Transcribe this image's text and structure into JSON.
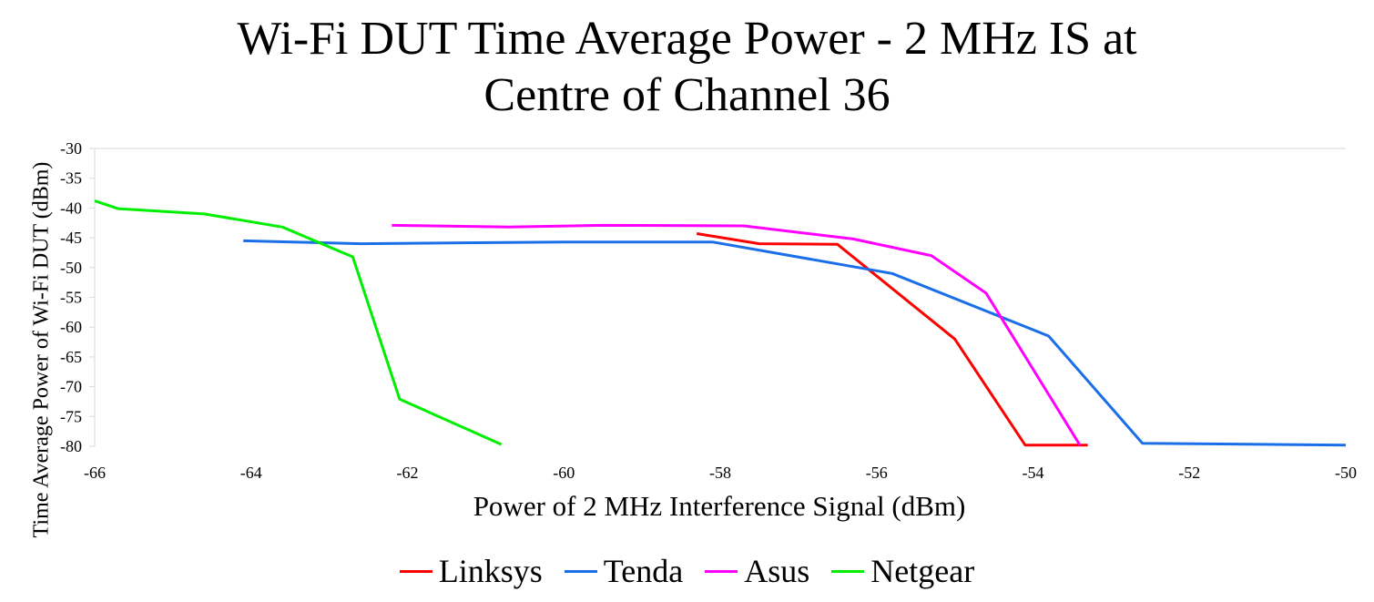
{
  "chart_data": {
    "type": "line",
    "title_lines": [
      "Wi-Fi DUT Time Average Power - 2 MHz IS at",
      "Centre of Channel 36"
    ],
    "xlabel": "Power of 2 MHz Interference Signal (dBm)",
    "ylabel": "Time Average Power of Wi-Fi DUT (dBm)",
    "xlim": [
      -66,
      -50
    ],
    "ylim": [
      -80,
      -30
    ],
    "xticks": [
      -66,
      -64,
      -62,
      -60,
      -58,
      -56,
      -54,
      -52,
      -50
    ],
    "yticks": [
      -30,
      -35,
      -40,
      -45,
      -50,
      -55,
      -60,
      -65,
      -70,
      -75,
      -80
    ],
    "grid": "horizontal top line only",
    "legend_position": "bottom",
    "series": [
      {
        "name": "Linksys",
        "color": "#ff0000",
        "x": [
          -58.3,
          -57.5,
          -56.5,
          -55,
          -54.1,
          -53.3
        ],
        "y": [
          -44.3,
          -46,
          -46.1,
          -62,
          -79.8,
          -79.8
        ]
      },
      {
        "name": "Tenda",
        "color": "#1a6fe8",
        "x": [
          -64.1,
          -62.6,
          -60,
          -58.1,
          -55.8,
          -53.8,
          -52.6,
          -50
        ],
        "y": [
          -45.5,
          -46,
          -45.7,
          -45.7,
          -51,
          -61.5,
          -79.5,
          -79.8
        ]
      },
      {
        "name": "Asus",
        "color": "#ff00ff",
        "x": [
          -62.2,
          -60.7,
          -59.5,
          -57.7,
          -56.3,
          -55.3,
          -54.6,
          -53.4
        ],
        "y": [
          -42.9,
          -43.2,
          -42.9,
          -43,
          -45.2,
          -48,
          -54.3,
          -79.8
        ]
      },
      {
        "name": "Netgear",
        "color": "#00ee00",
        "x": [
          -66,
          -65.7,
          -64.6,
          -63.6,
          -62.7,
          -62.1,
          -60.8
        ],
        "y": [
          -38.8,
          -40.1,
          -41,
          -43.2,
          -48.2,
          -72.1,
          -79.7
        ]
      }
    ]
  }
}
